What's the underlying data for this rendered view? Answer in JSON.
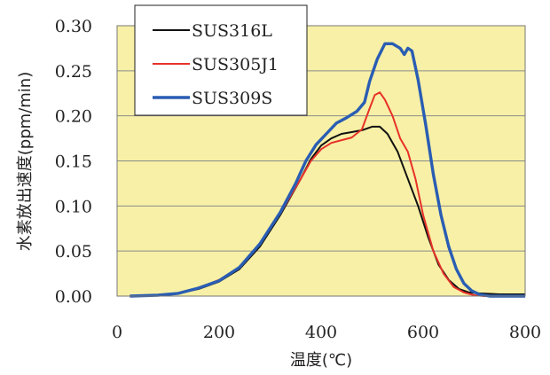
{
  "chart_data": {
    "type": "line",
    "xlabel": "温度(℃)",
    "ylabel": "水素放出速度(ppm/min)",
    "xlim": [
      0,
      800
    ],
    "ylim": [
      0,
      0.3
    ],
    "x_ticks": [
      "0",
      "200",
      "400",
      "600",
      "800"
    ],
    "y_ticks": [
      "0.00",
      "0.05",
      "0.10",
      "0.15",
      "0.20",
      "0.25",
      "0.30"
    ],
    "grid": true,
    "legend_position": "top-left",
    "plot_background": "#f7f0a6",
    "series": [
      {
        "name": "SUS316L",
        "color": "#111111",
        "points": [
          [
            25,
            0.0
          ],
          [
            80,
            0.001
          ],
          [
            120,
            0.003
          ],
          [
            160,
            0.008
          ],
          [
            200,
            0.016
          ],
          [
            240,
            0.03
          ],
          [
            280,
            0.055
          ],
          [
            320,
            0.09
          ],
          [
            360,
            0.13
          ],
          [
            380,
            0.152
          ],
          [
            400,
            0.167
          ],
          [
            420,
            0.175
          ],
          [
            440,
            0.18
          ],
          [
            460,
            0.182
          ],
          [
            480,
            0.184
          ],
          [
            500,
            0.188
          ],
          [
            515,
            0.188
          ],
          [
            530,
            0.18
          ],
          [
            550,
            0.16
          ],
          [
            570,
            0.13
          ],
          [
            590,
            0.1
          ],
          [
            610,
            0.065
          ],
          [
            630,
            0.035
          ],
          [
            650,
            0.018
          ],
          [
            670,
            0.008
          ],
          [
            690,
            0.004
          ],
          [
            710,
            0.003
          ],
          [
            750,
            0.002
          ],
          [
            800,
            0.002
          ]
        ]
      },
      {
        "name": "SUS305J1",
        "color": "#e8312a",
        "points": [
          [
            25,
            0.0
          ],
          [
            80,
            0.001
          ],
          [
            120,
            0.003
          ],
          [
            160,
            0.009
          ],
          [
            200,
            0.018
          ],
          [
            240,
            0.032
          ],
          [
            280,
            0.058
          ],
          [
            320,
            0.092
          ],
          [
            360,
            0.13
          ],
          [
            380,
            0.15
          ],
          [
            400,
            0.163
          ],
          [
            420,
            0.17
          ],
          [
            440,
            0.173
          ],
          [
            460,
            0.176
          ],
          [
            480,
            0.185
          ],
          [
            495,
            0.208
          ],
          [
            505,
            0.223
          ],
          [
            515,
            0.226
          ],
          [
            525,
            0.218
          ],
          [
            540,
            0.2
          ],
          [
            555,
            0.175
          ],
          [
            570,
            0.16
          ],
          [
            585,
            0.13
          ],
          [
            600,
            0.09
          ],
          [
            620,
            0.05
          ],
          [
            640,
            0.025
          ],
          [
            660,
            0.01
          ],
          [
            680,
            0.004
          ],
          [
            700,
            0.001
          ],
          [
            720,
            0.0
          ],
          [
            800,
            0.0
          ]
        ]
      },
      {
        "name": "SUS309S",
        "color": "#2a5db3",
        "points": [
          [
            25,
            0.0
          ],
          [
            80,
            0.001
          ],
          [
            120,
            0.003
          ],
          [
            160,
            0.009
          ],
          [
            200,
            0.017
          ],
          [
            240,
            0.032
          ],
          [
            280,
            0.058
          ],
          [
            320,
            0.093
          ],
          [
            350,
            0.125
          ],
          [
            370,
            0.15
          ],
          [
            390,
            0.168
          ],
          [
            410,
            0.18
          ],
          [
            430,
            0.192
          ],
          [
            450,
            0.198
          ],
          [
            470,
            0.205
          ],
          [
            485,
            0.215
          ],
          [
            495,
            0.238
          ],
          [
            510,
            0.263
          ],
          [
            525,
            0.28
          ],
          [
            540,
            0.28
          ],
          [
            555,
            0.275
          ],
          [
            563,
            0.268
          ],
          [
            570,
            0.275
          ],
          [
            578,
            0.272
          ],
          [
            590,
            0.24
          ],
          [
            605,
            0.19
          ],
          [
            620,
            0.135
          ],
          [
            635,
            0.09
          ],
          [
            650,
            0.055
          ],
          [
            665,
            0.03
          ],
          [
            680,
            0.014
          ],
          [
            695,
            0.006
          ],
          [
            710,
            0.002
          ],
          [
            730,
            0.0
          ],
          [
            800,
            0.0
          ]
        ]
      }
    ]
  }
}
